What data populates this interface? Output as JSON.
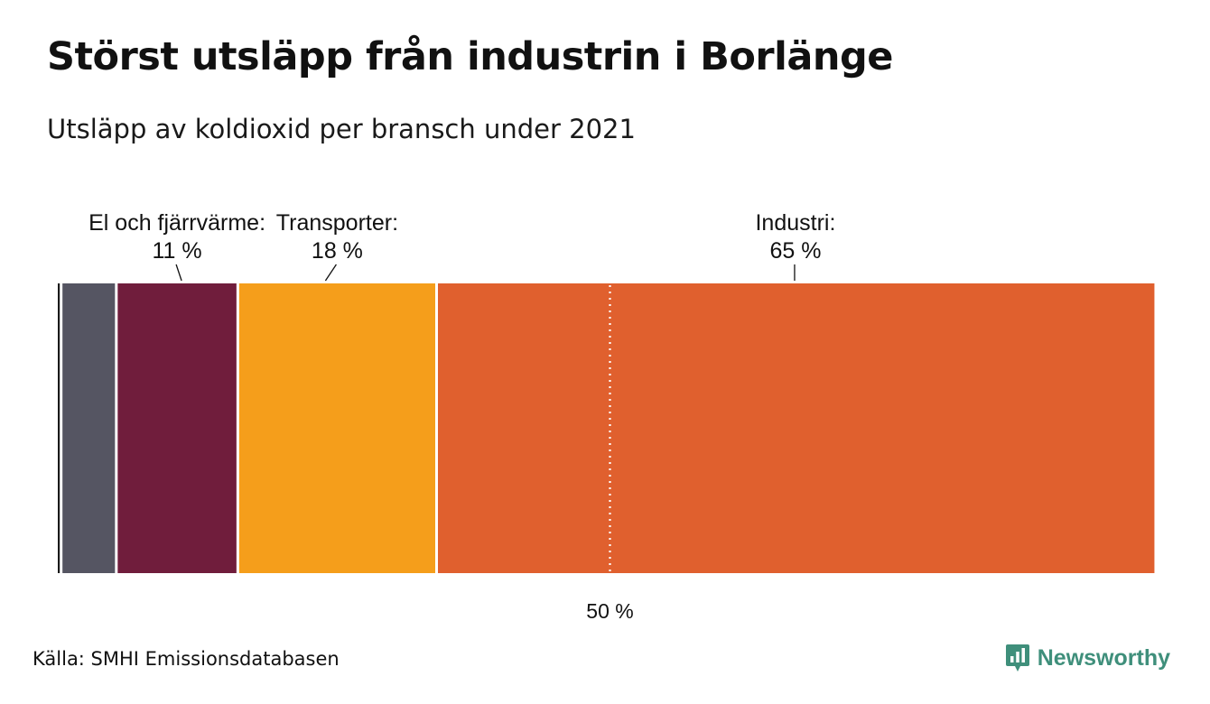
{
  "header": {
    "title": "Störst utsläpp från industrin i Borlänge",
    "subtitle": "Utsläpp av koldioxid per bransch under 2021"
  },
  "footer": {
    "source": "Källa: SMHI Emissionsdatabasen",
    "brand": "Newsworthy",
    "brand_icon": "newsworthy-logo-icon",
    "brand_color": "#3f8f7b"
  },
  "chart_data": {
    "type": "bar",
    "orientation": "horizontal-stacked",
    "xlim": [
      0,
      100
    ],
    "reference_line": {
      "value": 50,
      "label": "50 %"
    },
    "segments": [
      {
        "value": 0.3,
        "color": "#1a1a1a"
      },
      {
        "value": 5,
        "color": "#555562"
      },
      {
        "name": "El och fjärrvärme:",
        "value": 11,
        "value_label": "11 %",
        "color": "#701d3c"
      },
      {
        "name": "Transporter:",
        "value": 18,
        "value_label": "18 %",
        "color": "#f59e1b"
      },
      {
        "name": "Industri:",
        "value": 65,
        "value_label": "65 %",
        "color": "#e0602e"
      }
    ]
  }
}
